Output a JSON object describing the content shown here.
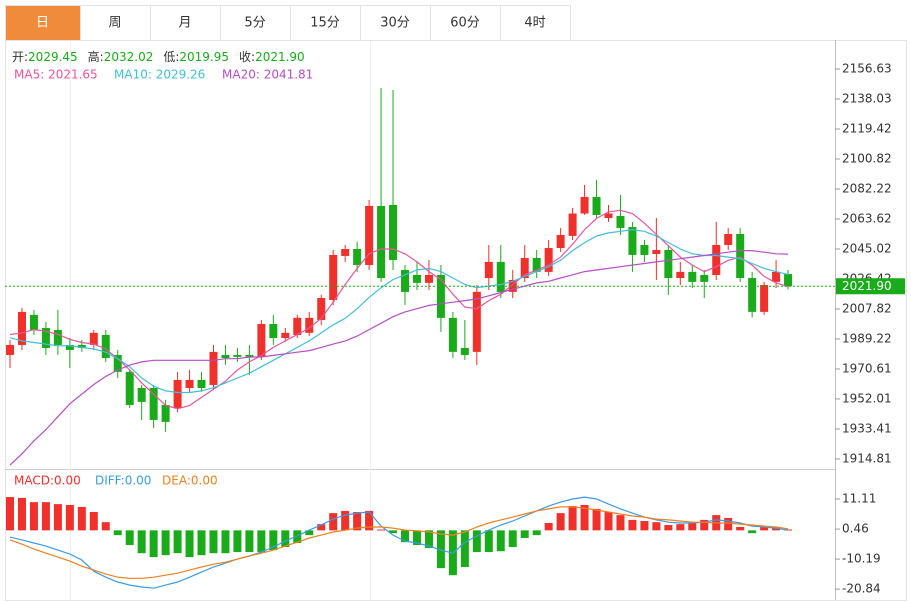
{
  "tabs": [
    "日",
    "周",
    "月",
    "5分",
    "15分",
    "30分",
    "60分",
    "4时"
  ],
  "active_tab": 0,
  "chart_data": [
    {
      "type": "candlestick",
      "info": [
        {
          "label": "开:",
          "value": "2029.45"
        },
        {
          "label": "高:",
          "value": "2032.02"
        },
        {
          "label": "低:",
          "value": "2019.95"
        },
        {
          "label": "收:",
          "value": "2021.90"
        }
      ],
      "open": [
        1979.3,
        1985.5,
        2004.1,
        1996.0,
        1994.8,
        1985.5,
        1985.5,
        1985.5,
        1991.7,
        1979.3,
        1968.8,
        1958.8,
        1958.8,
        1948.3,
        1946.4,
        1958.8,
        1963.8,
        1960.7,
        1979.3,
        1979.3,
        1979.3,
        1978.1,
        1998.5,
        1989.8,
        1991.7,
        1993.0,
        2001.0,
        2013.4,
        2040.7,
        2045.0,
        2035.1,
        2071.7,
        2072.3,
        2032.0,
        2028.9,
        2024.0,
        2028.9,
        2002.3,
        1983.6,
        1981.2,
        2027.0,
        2037.0,
        2018.4,
        2027.0,
        2039.4,
        2030.8,
        2045.6,
        2053.1,
        2067.0,
        2077.3,
        2064.2,
        2065.5,
        2058.6,
        2047.5,
        2041.9,
        2044.4,
        2027.0,
        2030.8,
        2028.9,
        2028.9,
        2047.5,
        2054.3,
        2027.0,
        2006.0,
        2024.6,
        2029.45
      ],
      "high": [
        1988.6,
        2008.4,
        2007.2,
        1999.8,
        2007.2,
        1989.8,
        1988.6,
        1994.8,
        1994.8,
        1982.4,
        1970.0,
        1960.7,
        1960.7,
        1951.4,
        1968.8,
        1970.0,
        1968.8,
        1985.5,
        1985.5,
        1983.6,
        1985.5,
        2001.0,
        2004.1,
        1996.0,
        2004.1,
        2006.0,
        2016.5,
        2044.4,
        2047.5,
        2049.4,
        2075.4,
        2144.8,
        2143.6,
        2035.1,
        2037.0,
        2038.2,
        2035.1,
        2006.0,
        2001.0,
        2022.7,
        2047.5,
        2047.5,
        2032.0,
        2047.5,
        2044.4,
        2050.6,
        2058.0,
        2070.5,
        2084.7,
        2087.8,
        2072.3,
        2078.5,
        2061.8,
        2050.6,
        2064.2,
        2047.5,
        2037.0,
        2035.1,
        2032.0,
        2061.8,
        2058.0,
        2058.0,
        2030.8,
        2024.6,
        2038.2,
        2032.02
      ],
      "low": [
        1971.2,
        1982.4,
        1991.7,
        1979.3,
        1979.3,
        1971.2,
        1981.2,
        1982.4,
        1975.0,
        1965.0,
        1946.4,
        1939.0,
        1934.0,
        1931.6,
        1943.9,
        1956.4,
        1956.4,
        1957.6,
        1973.1,
        1975.0,
        1966.9,
        1976.2,
        1985.5,
        1987.4,
        1989.8,
        1991.1,
        1997.9,
        2010.3,
        2037.0,
        2030.8,
        2032.0,
        2024.6,
        2032.0,
        2010.3,
        2019.6,
        2019.6,
        1993.6,
        1977.4,
        1976.2,
        1973.1,
        2019.6,
        2014.6,
        2014.6,
        2024.6,
        2027.0,
        2028.3,
        2043.2,
        2050.6,
        2066.1,
        2064.2,
        2061.8,
        2053.7,
        2030.8,
        2037.0,
        2025.8,
        2016.5,
        2022.7,
        2020.8,
        2014.6,
        2025.8,
        2044.4,
        2024.6,
        2002.6,
        2004.1,
        2020.8,
        2019.95
      ],
      "close": [
        1985.5,
        2006.0,
        1994.8,
        1983.6,
        1985.5,
        1982.4,
        1983.6,
        1993.0,
        1977.4,
        1968.8,
        1948.3,
        1950.2,
        1939.0,
        1937.8,
        1963.8,
        1963.8,
        1958.8,
        1981.2,
        1977.4,
        1978.1,
        1978.1,
        1998.5,
        1989.8,
        1993.0,
        2002.3,
        2002.3,
        2014.6,
        2041.3,
        2045.0,
        2035.1,
        2071.7,
        2027.0,
        2038.2,
        2018.4,
        2024.0,
        2028.9,
        2002.3,
        1981.2,
        1979.3,
        2018.4,
        2037.0,
        2018.4,
        2025.8,
        2039.4,
        2030.8,
        2045.6,
        2053.7,
        2067.0,
        2077.3,
        2066.1,
        2067.0,
        2058.0,
        2041.3,
        2041.3,
        2044.4,
        2027.0,
        2030.8,
        2024.6,
        2024.6,
        2047.5,
        2054.3,
        2027.0,
        2006.0,
        2022.7,
        2030.8,
        2021.9
      ],
      "up_color": "#f0302a",
      "down_color": "#1aab1a",
      "series": [
        {
          "name": "MA5: 2021.65",
          "color": "#e8559c",
          "values": [
            1992,
            1993,
            1995,
            1994,
            1992,
            1989,
            1987,
            1986,
            1983,
            1977,
            1970,
            1962,
            1955,
            1948,
            1946,
            1948,
            1953,
            1958,
            1963,
            1970,
            1975,
            1979,
            1984,
            1988,
            1992,
            1996,
            2002,
            2012,
            2023,
            2033,
            2042,
            2045,
            2045,
            2042,
            2037,
            2031,
            2026,
            2017,
            2009,
            2008,
            2013,
            2017,
            2023,
            2029,
            2032,
            2035,
            2040,
            2048,
            2057,
            2064,
            2068,
            2069,
            2067,
            2061,
            2054,
            2047,
            2040,
            2035,
            2031,
            2034,
            2038,
            2040,
            2035,
            2028,
            2024,
            2021.65
          ]
        },
        {
          "name": "MA10: 2029.26",
          "color": "#3fbfd8",
          "values": [
            1990,
            1988,
            1987,
            1986,
            1985,
            1985,
            1984,
            1983,
            1981,
            1977,
            1972,
            1965,
            1960,
            1957,
            1956,
            1956,
            1957,
            1959,
            1962,
            1965,
            1968,
            1972,
            1976,
            1980,
            1984,
            1988,
            1993,
            1998,
            2002,
            2008,
            2015,
            2021,
            2026,
            2029,
            2032,
            2033,
            2031,
            2027,
            2023,
            2021,
            2022,
            2023,
            2025,
            2028,
            2031,
            2034,
            2038,
            2044,
            2049,
            2053,
            2055,
            2056,
            2057,
            2056,
            2053,
            2049,
            2045,
            2042,
            2041,
            2041,
            2040,
            2039,
            2036,
            2033,
            2031,
            2029.26
          ]
        },
        {
          "name": "MA20: 2041.81",
          "color": "#b54fc4",
          "values": [
            1911,
            1918,
            1926,
            1933,
            1941,
            1949,
            1955,
            1961,
            1966,
            1970,
            1973,
            1975,
            1976,
            1976,
            1976,
            1976,
            1976,
            1976,
            1977,
            1977,
            1978,
            1978,
            1979,
            1980,
            1981,
            1982,
            1984,
            1986,
            1988,
            1991,
            1995,
            1999,
            2003,
            2006,
            2008,
            2010,
            2011,
            2012,
            2013,
            2014,
            2016,
            2018,
            2020,
            2022,
            2024,
            2025,
            2027,
            2029,
            2031,
            2032,
            2033,
            2034,
            2035,
            2036,
            2037,
            2038,
            2039,
            2040,
            2041,
            2042,
            2043,
            2044,
            2044,
            2043,
            2042,
            2041.81
          ]
        }
      ],
      "ylim": [
        1909.2,
        2174.6
      ],
      "yticks": [
        2156.63,
        2138.03,
        2119.42,
        2100.82,
        2082.22,
        2063.62,
        2045.02,
        2026.42,
        2007.82,
        1989.22,
        1970.61,
        1952.01,
        1933.41,
        1914.81
      ],
      "last_price": {
        "value": 2021.9,
        "label": "2021.90"
      }
    },
    {
      "type": "macd",
      "up_color": "#f0302a",
      "down_color": "#1aab1a",
      "series": [
        {
          "name": "MACD:0.00",
          "kind": "bar",
          "color": "#f0302a",
          "values": [
            11.8,
            11.5,
            10.0,
            10.0,
            9.3,
            9.0,
            8.3,
            6.5,
            2.9,
            -1.7,
            -5.2,
            -8.1,
            -9.5,
            -8.8,
            -8.1,
            -9.5,
            -8.8,
            -8.1,
            -8.1,
            -7.7,
            -7.7,
            -7.7,
            -7.0,
            -5.9,
            -4.5,
            -1.7,
            2.2,
            6.1,
            6.9,
            6.5,
            6.9,
            0.3,
            -1.0,
            -4.2,
            -5.2,
            -6.3,
            -13.4,
            -15.9,
            -13.0,
            -7.7,
            -7.7,
            -7.4,
            -5.9,
            -2.7,
            -1.7,
            2.6,
            6.1,
            8.6,
            9.0,
            7.6,
            6.5,
            5.4,
            3.7,
            3.3,
            2.9,
            1.9,
            2.2,
            2.9,
            3.7,
            5.4,
            4.4,
            1.2,
            -1.0,
            1.2,
            1.2,
            0.3
          ]
        },
        {
          "name": "DIFF:0.00",
          "kind": "line",
          "color": "#3b9be6",
          "values": [
            -2.4,
            -3.4,
            -4.5,
            -5.6,
            -7.0,
            -8.4,
            -10.5,
            -14.5,
            -16.6,
            -18.3,
            -19.4,
            -20.1,
            -20.5,
            -19.4,
            -18.3,
            -16.6,
            -14.8,
            -13.0,
            -11.6,
            -10.2,
            -9.1,
            -7.7,
            -5.9,
            -3.8,
            -2.0,
            0.1,
            1.9,
            4.0,
            5.4,
            6.1,
            6.5,
            1.5,
            -1.7,
            -3.8,
            -4.5,
            -5.6,
            -7.0,
            -8.1,
            -4.2,
            -2.0,
            0.1,
            1.9,
            3.3,
            5.1,
            6.9,
            8.6,
            10.0,
            11.1,
            11.8,
            11.1,
            9.3,
            7.6,
            6.1,
            4.7,
            3.7,
            2.9,
            2.6,
            2.6,
            2.9,
            3.7,
            3.3,
            2.6,
            1.5,
            1.2,
            0.8,
            0.1
          ]
        },
        {
          "name": "DEA:0.00",
          "kind": "line",
          "color": "#f08020",
          "values": [
            -3.4,
            -4.9,
            -6.6,
            -8.1,
            -9.5,
            -10.9,
            -12.7,
            -14.1,
            -15.5,
            -16.6,
            -17.0,
            -17.0,
            -16.6,
            -15.9,
            -15.2,
            -14.1,
            -13.0,
            -12.0,
            -11.3,
            -10.2,
            -9.1,
            -8.1,
            -7.0,
            -5.6,
            -4.2,
            -2.7,
            -1.7,
            -0.6,
            0.1,
            0.8,
            1.2,
            1.2,
            0.8,
            0.1,
            -0.2,
            -0.6,
            -1.3,
            -1.7,
            -0.6,
            1.2,
            2.6,
            3.7,
            4.7,
            5.8,
            6.9,
            7.6,
            8.3,
            8.3,
            7.9,
            7.2,
            6.5,
            5.8,
            5.1,
            4.7,
            4.0,
            3.7,
            3.3,
            2.9,
            2.9,
            2.6,
            2.6,
            2.2,
            1.9,
            1.5,
            1.2,
            0.5
          ]
        }
      ],
      "ylim": [
        -24.7,
        21.4
      ],
      "yticks": [
        11.11,
        0.46,
        -10.19,
        -20.84
      ]
    }
  ]
}
